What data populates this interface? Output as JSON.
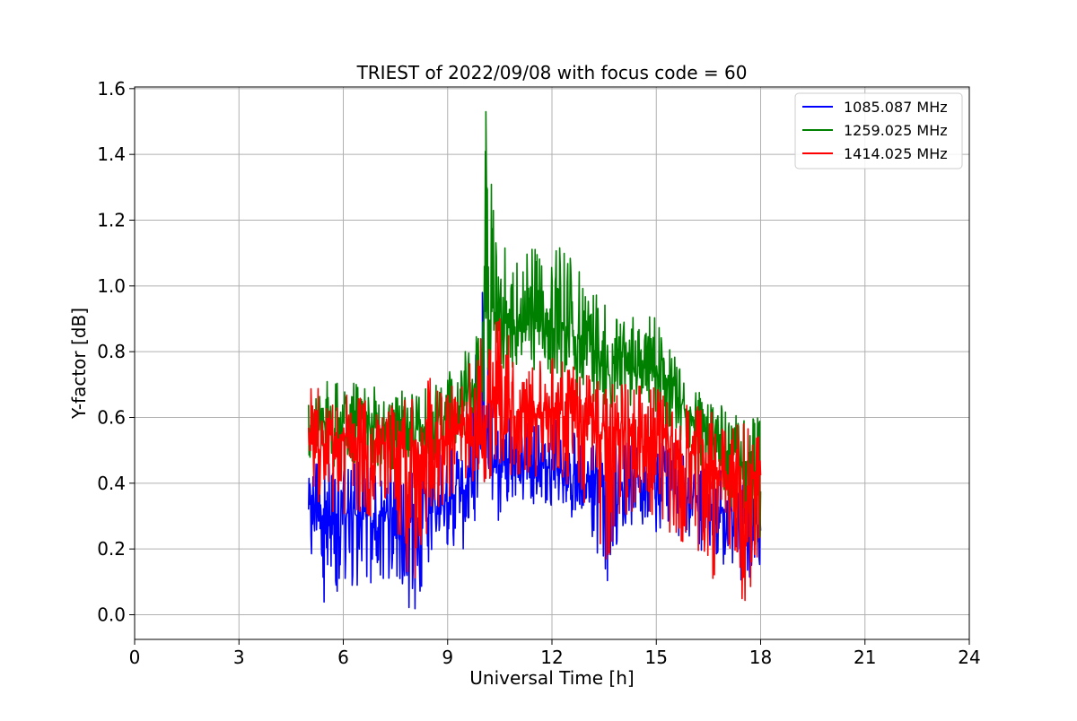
{
  "chart_data": {
    "type": "line",
    "title": "TRIEST of 2022/09/08 with focus code = 60",
    "xlabel": "Universal Time [h]",
    "ylabel": "Y-factor [dB]",
    "xlim": [
      0,
      24
    ],
    "ylim": [
      -0.075,
      1.605
    ],
    "x_ticks": [
      0,
      3,
      6,
      9,
      12,
      15,
      18,
      21,
      24
    ],
    "y_ticks": [
      0.0,
      0.2,
      0.4,
      0.6,
      0.8,
      1.0,
      1.2,
      1.4,
      1.6
    ],
    "x_tick_labels": [
      "0",
      "3",
      "6",
      "9",
      "12",
      "15",
      "18",
      "21",
      "24"
    ],
    "y_tick_labels": [
      "0.0",
      "0.2",
      "0.4",
      "0.6",
      "0.8",
      "1.0",
      "1.2",
      "1.4",
      "1.6"
    ],
    "grid": true,
    "legend_position": "top-right",
    "series": [
      {
        "name": "1085.087 MHz",
        "color": "#0000ff",
        "x": [
          5.0,
          5.5,
          6.0,
          6.5,
          7.0,
          7.5,
          8.0,
          8.5,
          9.0,
          9.5,
          10.0,
          10.5,
          11.0,
          11.5,
          12.0,
          12.5,
          13.0,
          13.5,
          14.0,
          14.5,
          15.0,
          15.5,
          16.0,
          16.5,
          17.0,
          17.5,
          18.0
        ],
        "y": [
          0.33,
          0.3,
          0.31,
          0.3,
          0.3,
          0.29,
          0.28,
          0.3,
          0.33,
          0.38,
          0.52,
          0.45,
          0.47,
          0.44,
          0.46,
          0.42,
          0.4,
          0.39,
          0.4,
          0.4,
          0.42,
          0.4,
          0.36,
          0.33,
          0.3,
          0.27,
          0.28
        ],
        "min": [
          0.2,
          0.02,
          0.1,
          0.08,
          0.07,
          0.1,
          0.0,
          0.15,
          0.2,
          0.2,
          0.35,
          0.28,
          0.3,
          0.3,
          0.32,
          0.3,
          0.28,
          0.07,
          0.25,
          0.26,
          0.25,
          0.24,
          0.22,
          0.18,
          0.1,
          0.03,
          0.15
        ],
        "max": [
          0.45,
          0.48,
          0.45,
          0.47,
          0.45,
          0.46,
          0.45,
          0.47,
          0.5,
          0.56,
          0.98,
          0.6,
          0.6,
          0.58,
          0.6,
          0.56,
          0.55,
          0.55,
          0.56,
          0.54,
          0.55,
          0.52,
          0.5,
          0.48,
          0.45,
          0.42,
          0.38
        ]
      },
      {
        "name": "1259.025 MHz",
        "color": "#008000",
        "x": [
          5.0,
          5.5,
          6.0,
          6.5,
          7.0,
          7.5,
          8.0,
          8.5,
          9.0,
          9.5,
          10.0,
          10.1,
          10.5,
          11.0,
          11.5,
          12.0,
          12.5,
          13.0,
          13.5,
          14.0,
          14.5,
          15.0,
          15.5,
          16.0,
          16.5,
          17.0,
          17.5,
          18.0
        ],
        "y": [
          0.55,
          0.58,
          0.59,
          0.58,
          0.57,
          0.57,
          0.56,
          0.57,
          0.6,
          0.66,
          0.76,
          0.9,
          0.88,
          0.9,
          0.9,
          0.92,
          0.86,
          0.82,
          0.78,
          0.76,
          0.77,
          0.74,
          0.68,
          0.6,
          0.55,
          0.52,
          0.46,
          0.45
        ],
        "min": [
          0.48,
          0.45,
          0.45,
          0.46,
          0.45,
          0.44,
          0.42,
          0.45,
          0.5,
          0.55,
          0.62,
          0.7,
          0.72,
          0.75,
          0.74,
          0.7,
          0.66,
          0.64,
          0.6,
          0.6,
          0.62,
          0.6,
          0.55,
          0.45,
          0.4,
          0.35,
          0.2,
          0.15
        ],
        "max": [
          0.67,
          0.71,
          0.71,
          0.7,
          0.69,
          0.69,
          0.68,
          0.7,
          0.74,
          0.82,
          0.86,
          1.53,
          1.12,
          1.13,
          1.15,
          1.16,
          1.1,
          1.0,
          0.95,
          0.92,
          0.93,
          0.9,
          0.8,
          0.7,
          0.65,
          0.63,
          0.6,
          0.6
        ]
      },
      {
        "name": "1414.025 MHz",
        "color": "#ff0000",
        "x": [
          5.0,
          5.5,
          6.0,
          6.5,
          7.0,
          7.5,
          8.0,
          8.5,
          9.0,
          9.5,
          10.0,
          10.5,
          11.0,
          11.5,
          12.0,
          12.5,
          13.0,
          13.5,
          14.0,
          14.5,
          15.0,
          15.5,
          16.0,
          16.5,
          17.0,
          17.5,
          18.0
        ],
        "y": [
          0.52,
          0.54,
          0.53,
          0.53,
          0.52,
          0.51,
          0.5,
          0.52,
          0.55,
          0.58,
          0.62,
          0.62,
          0.62,
          0.61,
          0.62,
          0.6,
          0.58,
          0.56,
          0.56,
          0.55,
          0.55,
          0.52,
          0.49,
          0.45,
          0.42,
          0.38,
          0.42
        ],
        "min": [
          0.35,
          0.32,
          0.3,
          0.3,
          0.3,
          0.28,
          0.05,
          0.3,
          0.35,
          0.4,
          0.38,
          0.4,
          0.4,
          0.4,
          0.4,
          0.38,
          0.3,
          0.1,
          0.3,
          0.3,
          0.3,
          0.22,
          0.22,
          0.08,
          0.2,
          0.0,
          0.2
        ],
        "max": [
          0.7,
          0.68,
          0.67,
          0.67,
          0.66,
          0.66,
          0.66,
          0.74,
          0.7,
          0.73,
          0.85,
          0.9,
          0.8,
          0.78,
          0.78,
          0.76,
          0.73,
          0.7,
          0.7,
          0.7,
          0.7,
          0.66,
          0.64,
          0.62,
          0.6,
          0.58,
          0.58
        ]
      }
    ]
  }
}
